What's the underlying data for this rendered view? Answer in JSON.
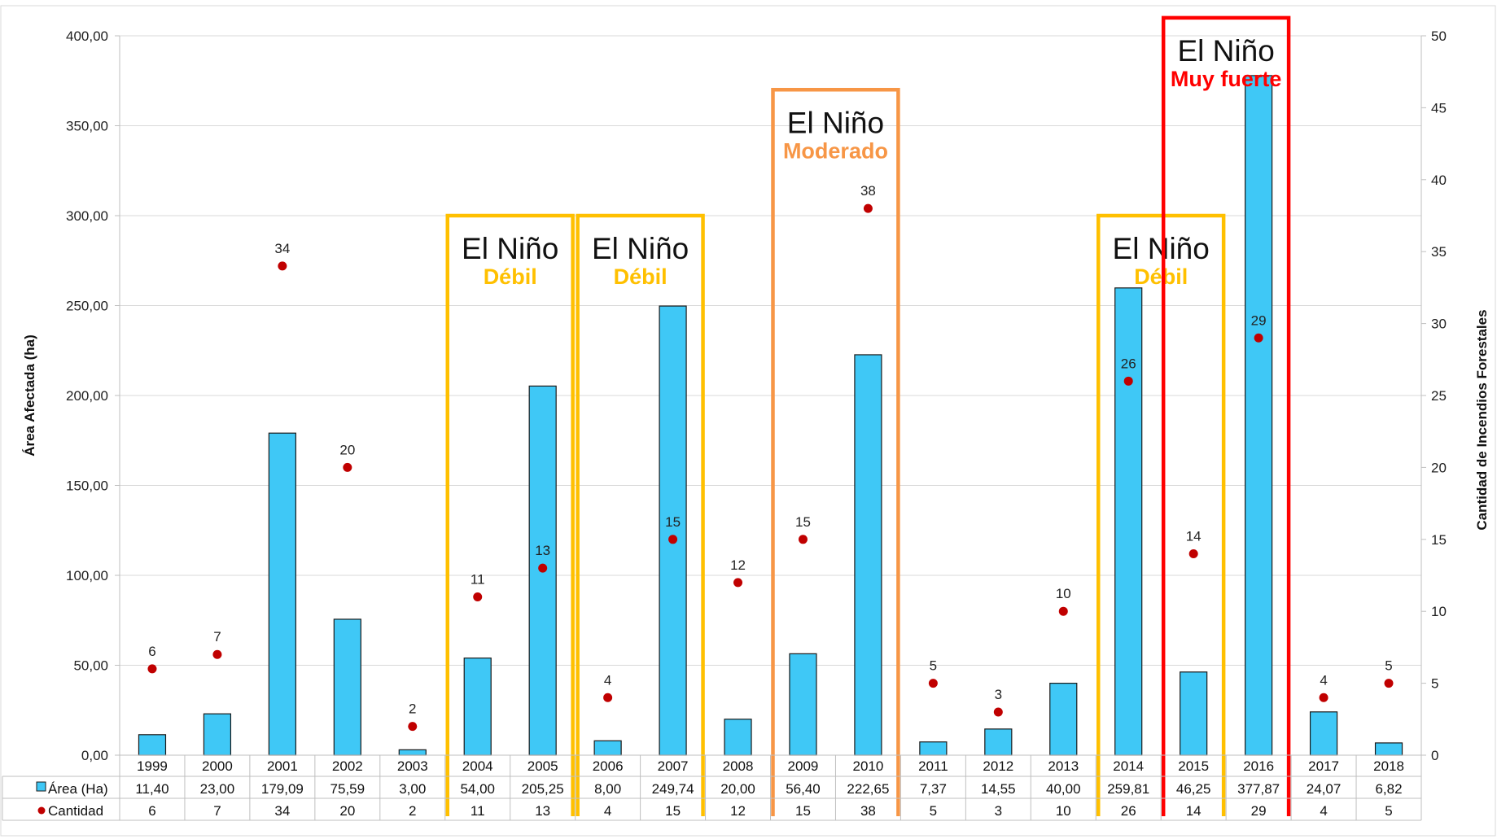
{
  "chart_data": {
    "type": "bar",
    "categories": [
      "1999",
      "2000",
      "2001",
      "2002",
      "2003",
      "2004",
      "2005",
      "2006",
      "2007",
      "2008",
      "2009",
      "2010",
      "2011",
      "2012",
      "2013",
      "2014",
      "2015",
      "2016",
      "2017",
      "2018"
    ],
    "series": [
      {
        "name": "Área (Ha)",
        "type": "bar",
        "axis": "left",
        "color": "#3FC8F6",
        "values": [
          11.4,
          23.0,
          179.09,
          75.59,
          3.0,
          54.0,
          205.25,
          8.0,
          249.74,
          20.0,
          56.4,
          222.65,
          7.37,
          14.55,
          40.0,
          259.81,
          46.25,
          377.87,
          24.07,
          6.82
        ],
        "labels": [
          "11,40",
          "23,00",
          "179,09",
          "75,59",
          "3,00",
          "54,00",
          "205,25",
          "8,00",
          "249,74",
          "20,00",
          "56,40",
          "222,65",
          "7,37",
          "14,55",
          "40,00",
          "259,81",
          "46,25",
          "377,87",
          "24,07",
          "6,82"
        ]
      },
      {
        "name": "Cantidad",
        "type": "scatter",
        "axis": "right",
        "color": "#C00000",
        "values": [
          6,
          7,
          34,
          20,
          2,
          11,
          13,
          4,
          15,
          12,
          15,
          38,
          5,
          3,
          10,
          26,
          14,
          29,
          4,
          5
        ]
      }
    ],
    "ylabel": "Área Afectada (ha)",
    "y2label": "Cantidad de Incendios Forestales",
    "ylim": [
      0,
      400
    ],
    "y2lim": [
      0,
      50
    ],
    "yticks": [
      "0,00",
      "50,00",
      "100,00",
      "150,00",
      "200,00",
      "250,00",
      "300,00",
      "350,00",
      "400,00"
    ],
    "y2ticks": [
      "0",
      "5",
      "10",
      "15",
      "20",
      "25",
      "30",
      "35",
      "40",
      "45",
      "50"
    ],
    "grid": true,
    "legend": "table-below",
    "annotations": [
      {
        "title": "El Niño",
        "subtitle": "Débil",
        "color": "#FFC000",
        "from": "2004",
        "to": "2005",
        "top": 300
      },
      {
        "title": "El Niño",
        "subtitle": "Débil",
        "color": "#FFC000",
        "from": "2006",
        "to": "2007",
        "top": 300
      },
      {
        "title": "El Niño",
        "subtitle": "Moderado",
        "color": "#F79646",
        "from": "2009",
        "to": "2010",
        "top": 370
      },
      {
        "title": "El Niño",
        "subtitle": "Débil",
        "color": "#FFC000",
        "from": "2014",
        "to": "2015",
        "top": 300
      },
      {
        "title": "El Niño",
        "subtitle": "Muy fuerte",
        "color": "#FF0000",
        "from": "2015",
        "to": "2016",
        "top": 410
      }
    ]
  }
}
